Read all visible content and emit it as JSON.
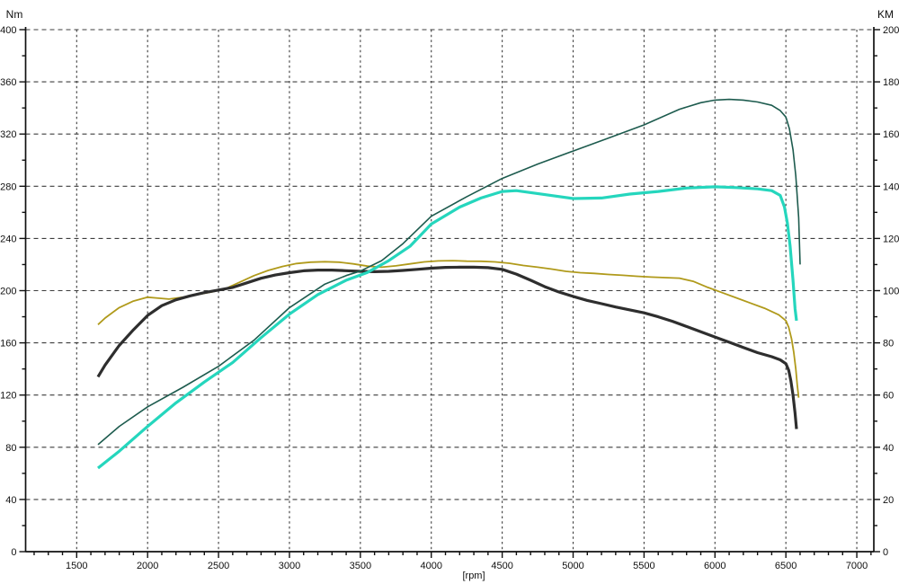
{
  "chart_data": {
    "type": "line",
    "title": "",
    "xlabel": "[rpm]",
    "y_left_label": "Nm",
    "y_right_label": "KM",
    "background": "#ffffff",
    "axis_color": "#101010",
    "grid": {
      "horizontal": true,
      "vertical": true,
      "style": "dashed",
      "color": "#3d3d3d"
    },
    "legend": "none",
    "x_axis": {
      "min": 1140,
      "max": 7120,
      "tick_start": 1500,
      "tick_end": 7000,
      "major_step": 500,
      "minor_step": 100,
      "minor_start": 1200,
      "minor_end": 7100,
      "tick_labels": [
        "1500",
        "2000",
        "2500",
        "3000",
        "3500",
        "4000",
        "4500",
        "5000",
        "5500",
        "6000",
        "6500",
        "7000"
      ]
    },
    "y_left": {
      "min": 0,
      "max": 400,
      "major_step": 40,
      "minor_step": 20,
      "tick_labels": [
        "0",
        "40",
        "80",
        "120",
        "160",
        "200",
        "240",
        "280",
        "320",
        "360",
        "400"
      ]
    },
    "y_right": {
      "min": 0,
      "max": 200,
      "major_step": 20,
      "minor_step": 10,
      "tick_labels": [
        "0",
        "20",
        "40",
        "60",
        "80",
        "100",
        "120",
        "140",
        "160",
        "180",
        "200"
      ]
    },
    "series": [
      {
        "name": "torque-olive",
        "unit": "Nm",
        "axis": "left",
        "color": "#b09a1b",
        "width": 1.8,
        "points": [
          [
            1650,
            174
          ],
          [
            1700,
            179
          ],
          [
            1800,
            187
          ],
          [
            1900,
            192
          ],
          [
            2000,
            195
          ],
          [
            2050,
            194.5
          ],
          [
            2150,
            193.5
          ],
          [
            2250,
            195
          ],
          [
            2350,
            197
          ],
          [
            2450,
            199
          ],
          [
            2550,
            201.5
          ],
          [
            2650,
            206.5
          ],
          [
            2750,
            211.5
          ],
          [
            2850,
            215.5
          ],
          [
            2950,
            218.5
          ],
          [
            3050,
            220.8
          ],
          [
            3150,
            221.8
          ],
          [
            3250,
            222.2
          ],
          [
            3350,
            221.8
          ],
          [
            3450,
            220.5
          ],
          [
            3550,
            218.8
          ],
          [
            3650,
            218
          ],
          [
            3750,
            219
          ],
          [
            3850,
            220.5
          ],
          [
            3950,
            222
          ],
          [
            4050,
            222.8
          ],
          [
            4150,
            223
          ],
          [
            4250,
            222.6
          ],
          [
            4350,
            222.5
          ],
          [
            4450,
            222
          ],
          [
            4550,
            221
          ],
          [
            4650,
            219.3
          ],
          [
            4750,
            218
          ],
          [
            4850,
            216.5
          ],
          [
            4950,
            214.8
          ],
          [
            5050,
            213.8
          ],
          [
            5150,
            213.2
          ],
          [
            5250,
            212.4
          ],
          [
            5350,
            211.8
          ],
          [
            5450,
            211
          ],
          [
            5550,
            210.4
          ],
          [
            5650,
            210
          ],
          [
            5750,
            209.6
          ],
          [
            5850,
            207
          ],
          [
            5950,
            202.5
          ],
          [
            6050,
            198.5
          ],
          [
            6150,
            194.5
          ],
          [
            6250,
            190.5
          ],
          [
            6350,
            186.5
          ],
          [
            6450,
            181.5
          ],
          [
            6500,
            177
          ],
          [
            6520,
            172
          ],
          [
            6540,
            163
          ],
          [
            6555,
            153
          ],
          [
            6570,
            140
          ],
          [
            6580,
            128
          ],
          [
            6590,
            118
          ]
        ]
      },
      {
        "name": "torque-black",
        "unit": "Nm",
        "axis": "left",
        "color": "#2e2e2e",
        "width": 3.2,
        "points": [
          [
            1650,
            134
          ],
          [
            1700,
            143
          ],
          [
            1800,
            158
          ],
          [
            1900,
            170
          ],
          [
            2000,
            181
          ],
          [
            2100,
            188.5
          ],
          [
            2200,
            193
          ],
          [
            2300,
            196
          ],
          [
            2400,
            198.5
          ],
          [
            2500,
            200.5
          ],
          [
            2600,
            202.5
          ],
          [
            2700,
            206
          ],
          [
            2800,
            209.5
          ],
          [
            2900,
            212
          ],
          [
            3000,
            213.8
          ],
          [
            3100,
            215.2
          ],
          [
            3200,
            215.8
          ],
          [
            3300,
            215.8
          ],
          [
            3400,
            215.3
          ],
          [
            3500,
            214.8
          ],
          [
            3600,
            214.5
          ],
          [
            3700,
            214.8
          ],
          [
            3800,
            215.5
          ],
          [
            3900,
            216.3
          ],
          [
            4000,
            217.2
          ],
          [
            4100,
            217.8
          ],
          [
            4200,
            218
          ],
          [
            4300,
            218
          ],
          [
            4400,
            217.6
          ],
          [
            4500,
            216.3
          ],
          [
            4600,
            212.7
          ],
          [
            4700,
            208
          ],
          [
            4800,
            203
          ],
          [
            4900,
            199
          ],
          [
            5000,
            195.6
          ],
          [
            5100,
            192.5
          ],
          [
            5200,
            190
          ],
          [
            5300,
            187.5
          ],
          [
            5400,
            185.3
          ],
          [
            5500,
            183
          ],
          [
            5600,
            180
          ],
          [
            5700,
            176.5
          ],
          [
            5800,
            172.5
          ],
          [
            5900,
            168.5
          ],
          [
            6000,
            164.5
          ],
          [
            6100,
            160.5
          ],
          [
            6200,
            156.5
          ],
          [
            6300,
            152.5
          ],
          [
            6400,
            149.4
          ],
          [
            6460,
            147
          ],
          [
            6500,
            144
          ],
          [
            6520,
            139
          ],
          [
            6535,
            131
          ],
          [
            6550,
            120
          ],
          [
            6565,
            106
          ],
          [
            6575,
            94
          ]
        ]
      },
      {
        "name": "power-dark-green",
        "unit": "KM",
        "axis": "right",
        "color": "#1d5b4e",
        "width": 1.6,
        "points": [
          [
            1650,
            41
          ],
          [
            1800,
            48
          ],
          [
            2000,
            55.5
          ],
          [
            2250,
            63
          ],
          [
            2500,
            71
          ],
          [
            2750,
            81
          ],
          [
            3000,
            93.5
          ],
          [
            3250,
            102.5
          ],
          [
            3400,
            105.8
          ],
          [
            3500,
            107.5
          ],
          [
            3650,
            111.5
          ],
          [
            3800,
            118
          ],
          [
            4000,
            128.5
          ],
          [
            4250,
            136
          ],
          [
            4500,
            143
          ],
          [
            4750,
            148.5
          ],
          [
            5000,
            153.5
          ],
          [
            5250,
            158.5
          ],
          [
            5500,
            163.5
          ],
          [
            5750,
            169.5
          ],
          [
            5900,
            172
          ],
          [
            6000,
            173
          ],
          [
            6100,
            173.3
          ],
          [
            6200,
            173
          ],
          [
            6300,
            172.3
          ],
          [
            6400,
            171
          ],
          [
            6460,
            169
          ],
          [
            6500,
            166.5
          ],
          [
            6525,
            162
          ],
          [
            6550,
            154
          ],
          [
            6570,
            144
          ],
          [
            6590,
            128
          ],
          [
            6600,
            110
          ]
        ]
      },
      {
        "name": "power-turquoise",
        "unit": "KM",
        "axis": "right",
        "color": "#25d6bd",
        "width": 3.2,
        "points": [
          [
            1650,
            32
          ],
          [
            1800,
            38.5
          ],
          [
            2000,
            48
          ],
          [
            2200,
            57
          ],
          [
            2400,
            65
          ],
          [
            2600,
            72.5
          ],
          [
            2800,
            82
          ],
          [
            3000,
            91
          ],
          [
            3200,
            98.5
          ],
          [
            3400,
            104
          ],
          [
            3550,
            107
          ],
          [
            3700,
            111.5
          ],
          [
            3850,
            117
          ],
          [
            4000,
            125.5
          ],
          [
            4200,
            132
          ],
          [
            4350,
            135.5
          ],
          [
            4500,
            138
          ],
          [
            4600,
            138.3
          ],
          [
            4800,
            136.8
          ],
          [
            5000,
            135.3
          ],
          [
            5200,
            135.5
          ],
          [
            5400,
            137
          ],
          [
            5600,
            138
          ],
          [
            5800,
            139.3
          ],
          [
            6000,
            139.8
          ],
          [
            6150,
            139.5
          ],
          [
            6300,
            139
          ],
          [
            6400,
            138.3
          ],
          [
            6460,
            136.5
          ],
          [
            6490,
            132
          ],
          [
            6510,
            126
          ],
          [
            6530,
            117
          ],
          [
            6550,
            104
          ],
          [
            6565,
            93
          ],
          [
            6575,
            88.5
          ]
        ]
      }
    ]
  }
}
